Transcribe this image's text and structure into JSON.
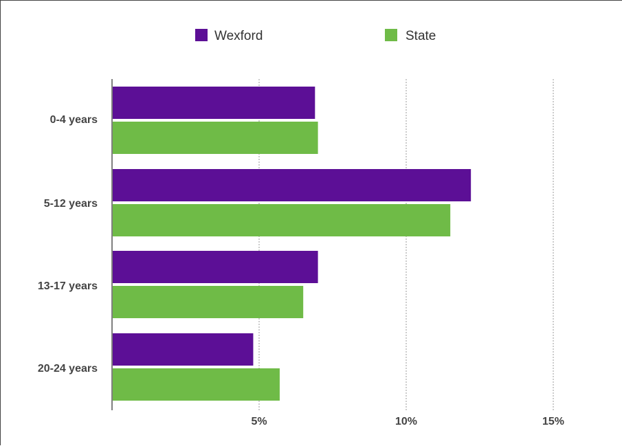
{
  "chart_data": {
    "type": "bar",
    "orientation": "horizontal",
    "categories": [
      "0-4 years",
      "5-12 years",
      "13-17 years",
      "20-24 years"
    ],
    "series": [
      {
        "name": "Wexford",
        "color": "#5c0f96",
        "values": [
          6.9,
          12.2,
          7.0,
          4.8
        ]
      },
      {
        "name": "State",
        "color": "#6fbb47",
        "values": [
          7.0,
          11.5,
          6.5,
          5.7
        ]
      }
    ],
    "xlim": [
      0,
      17
    ],
    "xticks": [
      5,
      10,
      15
    ],
    "xtick_labels": [
      "5%",
      "10%",
      "15%"
    ],
    "grid": "vertical dotted",
    "legend": "top"
  }
}
